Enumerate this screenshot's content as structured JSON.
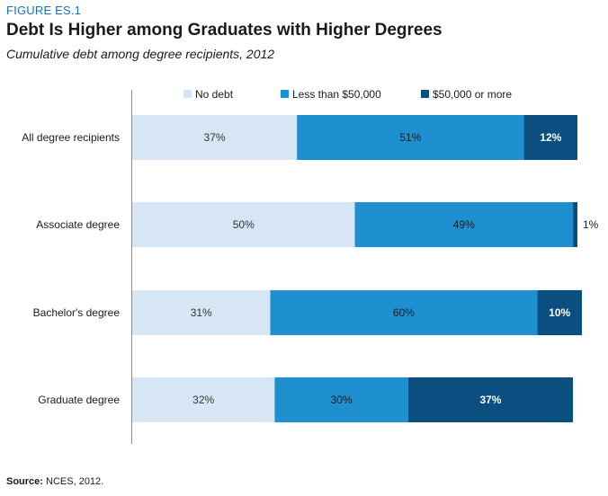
{
  "header": {
    "figure_label": "FIGURE ES.1",
    "title": "Debt Is Higher among Graduates with Higher Degrees",
    "subtitle": "Cumulative debt among degree recipients, 2012"
  },
  "footer": {
    "source_label": "Source:",
    "source_text": " NCES, 2012."
  },
  "chart_data": {
    "type": "bar",
    "orientation": "horizontal",
    "stacked": true,
    "categories": [
      "All degree recipients",
      "Associate degree",
      "Bachelor's degree",
      "Graduate degree"
    ],
    "series": [
      {
        "name": "No debt",
        "values": [
          37,
          50,
          31,
          32
        ],
        "color": "#d6e6f4",
        "label_color": "#333333",
        "label_bold": false
      },
      {
        "name": "Less than $50,000",
        "values": [
          51,
          49,
          60,
          30
        ],
        "color": "#1e90d0",
        "label_color": "#1a1a1a",
        "label_bold": false
      },
      {
        "name": "$50,000 or more",
        "values": [
          12,
          1,
          10,
          37
        ],
        "color": "#0b4f80",
        "label_color": "#ffffff",
        "label_bold": true
      }
    ],
    "data_labels": [
      [
        "37%",
        "51%",
        "12%"
      ],
      [
        "50%",
        "49%",
        "1%"
      ],
      [
        "31%",
        "60%",
        "10%"
      ],
      [
        "32%",
        "30%",
        "37%"
      ]
    ],
    "xlim": [
      0,
      100
    ],
    "grid": false,
    "legend_position": "top"
  }
}
